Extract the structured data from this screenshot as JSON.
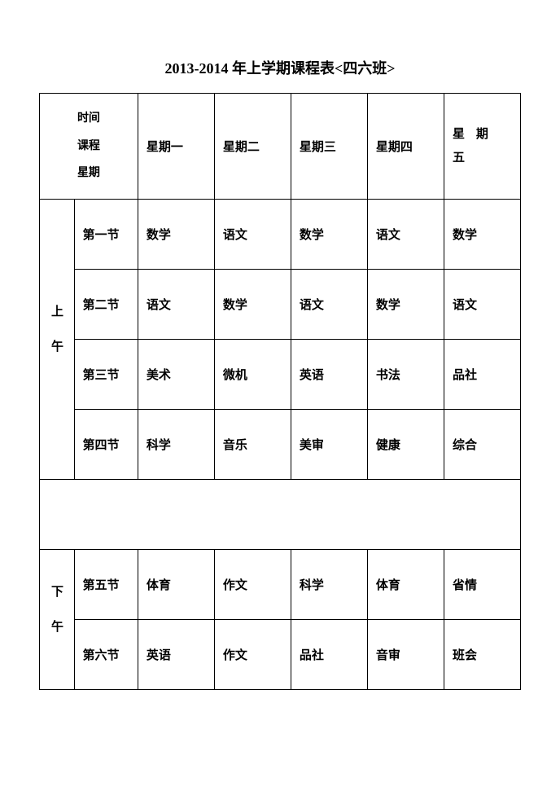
{
  "title": "2013-2014 年上学期课程表<四六班>",
  "header": {
    "left_lines": [
      "时间",
      "课程",
      "星期"
    ],
    "days": [
      "星期一",
      "星期二",
      "星期三",
      "星期四"
    ],
    "friday": {
      "line1a": "星",
      "line1b": "期",
      "line2": "五"
    }
  },
  "sessions": {
    "am": "上午",
    "pm": "下午"
  },
  "periods_am": [
    "第一节",
    "第二节",
    "第三节",
    "第四节"
  ],
  "periods_pm": [
    "第五节",
    "第六节"
  ],
  "rows_am": [
    [
      "数学",
      "语文",
      "数学",
      "语文",
      "数学"
    ],
    [
      "语文",
      "数学",
      "语文",
      "数学",
      "语文"
    ],
    [
      "美术",
      "微机",
      "英语",
      "书法",
      "品社"
    ],
    [
      "科学",
      "音乐",
      "美审",
      "健康",
      "综合"
    ]
  ],
  "rows_pm": [
    [
      "体育",
      "作文",
      "科学",
      "体育",
      "省情"
    ],
    [
      "英语",
      "作文",
      "品社",
      "音审",
      "班会"
    ]
  ],
  "colors": {
    "text": "#000000",
    "background": "#ffffff",
    "border": "#000000"
  }
}
